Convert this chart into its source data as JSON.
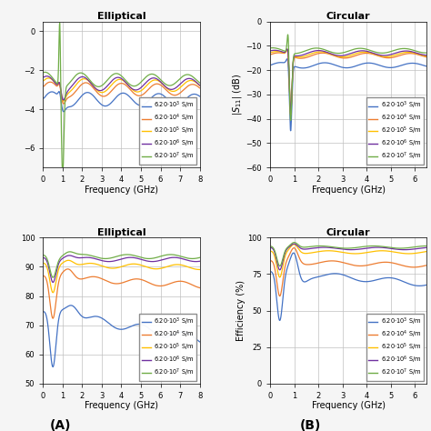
{
  "titles": [
    [
      "Elliptical",
      "Circular"
    ],
    [
      "Elliptical",
      "Circular"
    ]
  ],
  "xlabel": "Frequency (GHz)",
  "ylabel_tr": "|S$_{11}$| (dB)",
  "ylabel_br": "Efficiency (%)",
  "panel_labels": [
    "(A)",
    "(B)"
  ],
  "legend_labels": [
    "6.20·10$^3$ S/m",
    "6.20·10$^4$ S/m",
    "6.20·10$^5$ S/m",
    "6.20·10$^6$ S/m",
    "6.20·10$^7$ S/m"
  ],
  "colors": [
    "#4472C4",
    "#ED7D31",
    "#FFC000",
    "#7030A0",
    "#70AD47"
  ],
  "tl_xlim": [
    0,
    8
  ],
  "tl_ylim": [
    -7,
    0.5
  ],
  "tr_xlim": [
    0,
    6.5
  ],
  "tr_ylim": [
    -60,
    0
  ],
  "bl_xlim": [
    0,
    8
  ],
  "bl_ylim": [
    50,
    100
  ],
  "br_xlim": [
    0,
    6.5
  ],
  "br_ylim": [
    0,
    100
  ],
  "bg_color": "#f0f0f0",
  "ax_bg": "#ffffff"
}
